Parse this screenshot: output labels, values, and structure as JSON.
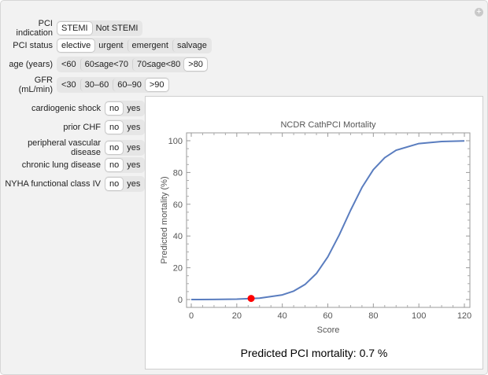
{
  "controls": [
    {
      "label": "PCI indication",
      "options": [
        "STEMI",
        "Not STEMI"
      ],
      "selected": 0
    },
    {
      "label": "PCI status",
      "options": [
        "elective",
        "urgent",
        "emergent",
        "salvage"
      ],
      "selected": 0
    },
    {
      "label": "age (years)",
      "options": [
        "<60",
        "60≤age<70",
        "70≤age<80",
        ">80"
      ],
      "selected": 3
    },
    {
      "label": "GFR (mL/min)",
      "options": [
        "<30",
        "30–60",
        "60–90",
        ">90"
      ],
      "selected": 3
    }
  ],
  "toggles": [
    {
      "label": "cardiogenic shock",
      "options": [
        "no",
        "yes"
      ],
      "selected": 0
    },
    {
      "label": "prior CHF",
      "options": [
        "no",
        "yes"
      ],
      "selected": 0
    },
    {
      "label": "peripheral vascular disease",
      "options": [
        "no",
        "yes"
      ],
      "selected": 0
    },
    {
      "label": "chronic lung disease",
      "options": [
        "no",
        "yes"
      ],
      "selected": 0
    },
    {
      "label": "NYHA functional class IV",
      "options": [
        "no",
        "yes"
      ],
      "selected": 0
    }
  ],
  "result": "Predicted PCI mortality: 0.7 %",
  "chart_data": {
    "type": "line",
    "title": "NCDR CathPCI Mortality",
    "xlabel": "Score",
    "ylabel": "Predicted mortality (%)",
    "xlim": [
      0,
      120
    ],
    "ylim": [
      0,
      100
    ],
    "xticks": [
      0,
      20,
      40,
      60,
      80,
      100,
      120
    ],
    "yticks": [
      0,
      20,
      40,
      60,
      80,
      100
    ],
    "series": [
      {
        "color": "#5a7dbf",
        "x": [
          0,
          10,
          20,
          30,
          40,
          45,
          50,
          55,
          60,
          65,
          70,
          75,
          80,
          85,
          90,
          100,
          110,
          120
        ],
        "y": [
          0.02,
          0.07,
          0.25,
          0.86,
          2.9,
          5.3,
          9.5,
          16.4,
          26.9,
          40.7,
          56.2,
          70.6,
          81.8,
          89.3,
          94.0,
          98.2,
          99.5,
          99.85
        ]
      }
    ],
    "marker": {
      "x": 26.3,
      "y": 0.7,
      "color": "#ff0000"
    }
  }
}
